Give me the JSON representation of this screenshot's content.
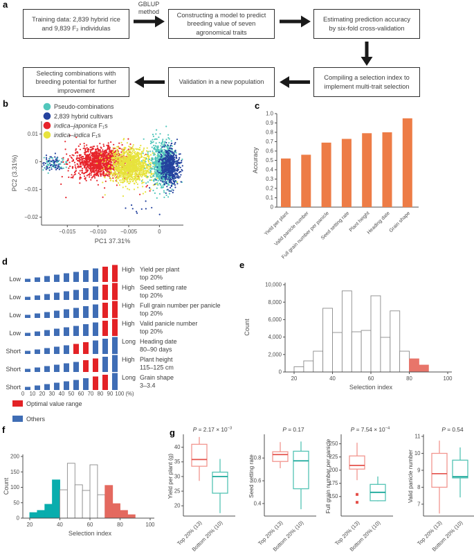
{
  "panel_labels": {
    "a": "a",
    "b": "b",
    "c": "c",
    "d": "d",
    "e": "e",
    "f": "f",
    "g": "g"
  },
  "flowchart": {
    "arrow_label": [
      "GBLUP",
      "method"
    ],
    "boxes": [
      "Training data: 2,839 hybrid rice and 9,839 F₂ individulas",
      "Constructing a model to predict breeding value of seven agronomical traits",
      "Estimating prediction accuracy by six-fold cross-validation",
      "Compiling a selection index to implement multi-trait selection",
      "Validation in a new population",
      "Selecting combinations with breeding potential for further improvement"
    ]
  },
  "chart_data": [
    {
      "id": "b",
      "type": "scatter",
      "xlabel": "PC1 37.31%",
      "ylabel": "PC2 (3.31%)",
      "xlim": [
        -0.0192,
        0.0039
      ],
      "ylim": [
        -0.0229,
        0.0146
      ],
      "xticks": [
        {
          "v": -0.015,
          "t": "−0.015"
        },
        {
          "v": -0.01,
          "t": "−0.010"
        },
        {
          "v": -0.005,
          "t": "−0.005"
        },
        {
          "v": 0,
          "t": "0"
        }
      ],
      "yticks": [
        {
          "v": 0.01,
          "t": "0.01"
        },
        {
          "v": 0,
          "t": "0"
        },
        {
          "v": -0.01,
          "t": "−0.01"
        },
        {
          "v": -0.02,
          "t": "−0.02"
        }
      ],
      "legend": [
        {
          "italic": "",
          "text": "Pseudo-combinations",
          "color": "#52c7bc"
        },
        {
          "italic": "",
          "text": "2,839 hybrid cultivars",
          "color": "#24429e"
        },
        {
          "italic": "indica–japonica",
          "text": " F₁s",
          "color": "#e7242b"
        },
        {
          "italic": "indica–indica",
          "text": " F₁s",
          "color": "#e7e33d"
        }
      ],
      "clusters": [
        {
          "color": "#24429e",
          "cx": -0.0176,
          "cy": -0.0005,
          "sx": 0.0011,
          "sy": 0.0014,
          "n": 80
        },
        {
          "color": "#52c7bc",
          "cx": -0.017,
          "cy": -0.0008,
          "sx": 0.0012,
          "sy": 0.0013,
          "n": 45
        },
        {
          "color": "#e7242b",
          "cx": -0.0092,
          "cy": -0.0008,
          "sx": 0.0042,
          "sy": 0.0048,
          "n": 55
        },
        {
          "color": "#e7242b",
          "cx": -0.0095,
          "cy": -0.0002,
          "sx": 0.0021,
          "sy": 0.0026,
          "n": 1250
        },
        {
          "color": "#e7e33d",
          "cx": -0.0046,
          "cy": -0.003,
          "sx": 0.0028,
          "sy": 0.0048,
          "n": 45
        },
        {
          "color": "#e7e33d",
          "cx": -0.0047,
          "cy": -0.0016,
          "sx": 0.0016,
          "sy": 0.0029,
          "n": 1150
        },
        {
          "color": "#52c7bc",
          "cx": 0.0004,
          "cy": -0.0008,
          "sx": 0.001,
          "sy": 0.0046,
          "n": 650
        },
        {
          "color": "#24429e",
          "cx": 0.0017,
          "cy": -0.0019,
          "sx": 0.0008,
          "sy": 0.0032,
          "n": 560
        },
        {
          "color": "#24429e",
          "cx": -0.003,
          "cy": -0.0178,
          "sx": 0.0014,
          "sy": 0.0018,
          "n": 10
        }
      ]
    },
    {
      "id": "c",
      "type": "bar",
      "ylabel": "Accuracy",
      "categories": [
        "Yield per plant",
        "Valid panicle number",
        "Full grain number per panicle",
        "Seed setting rate",
        "Plant height",
        "Heading date",
        "Grain shape"
      ],
      "values": [
        0.52,
        0.56,
        0.69,
        0.73,
        0.79,
        0.8,
        0.95
      ],
      "ylim": [
        0,
        1.0
      ],
      "yticks": [
        {
          "v": 0,
          "t": "0"
        },
        {
          "v": 0.1,
          "t": "0.1"
        },
        {
          "v": 0.2,
          "t": "0.2"
        },
        {
          "v": 0.3,
          "t": "0.3"
        },
        {
          "v": 0.4,
          "t": "0.4"
        },
        {
          "v": 0.5,
          "t": "0.5"
        },
        {
          "v": 0.6,
          "t": "0.6"
        },
        {
          "v": 0.7,
          "t": "0.7"
        },
        {
          "v": 0.8,
          "t": "0.8"
        },
        {
          "v": 0.9,
          "t": "0.9"
        },
        {
          "v": 1.0,
          "t": "1.0"
        }
      ],
      "bar_color": "#ed7c46"
    },
    {
      "id": "d",
      "type": "decile-rows",
      "red": "#e32226",
      "blue": "#3f6db5",
      "axis_labels": [
        "0",
        "10",
        "20",
        "30",
        "40",
        "50",
        "60",
        "70",
        "80",
        "90",
        "100 (%)"
      ],
      "legend": [
        {
          "color": "#e32226",
          "text": "Optimal value range"
        },
        {
          "color": "#3f6db5",
          "text": "Others"
        }
      ],
      "rows": [
        {
          "left": "Low",
          "right_qualifier": "High",
          "trait": "Yield per plant",
          "range": "top 20%",
          "red_bins": [
            8,
            9
          ]
        },
        {
          "left": "Low",
          "right_qualifier": "High",
          "trait": "Seed setting rate",
          "range": "top 20%",
          "red_bins": [
            8,
            9
          ]
        },
        {
          "left": "Low",
          "right_qualifier": "High",
          "trait": "Full grain number per panicle",
          "range": "top 20%",
          "red_bins": [
            8,
            9
          ]
        },
        {
          "left": "Low",
          "right_qualifier": "High",
          "trait": "Valid panicle number",
          "range": "top 20%",
          "red_bins": [
            8,
            9
          ]
        },
        {
          "left": "Short",
          "right_qualifier": "Long",
          "trait": "Heading date",
          "range": "80–90 days",
          "red_bins": [
            5,
            6
          ]
        },
        {
          "left": "Short",
          "right_qualifier": "High",
          "trait": "Plant height",
          "range": "115–125 cm",
          "red_bins": [
            6,
            7
          ]
        },
        {
          "left": "Short",
          "right_qualifier": "Long",
          "trait": "Grain shape",
          "range": "3–3.4",
          "red_bins": [
            7,
            8
          ]
        }
      ]
    },
    {
      "id": "e",
      "type": "bar",
      "subtype": "histogram",
      "xlabel": "Selection index",
      "ylabel": "Count",
      "bin_start": 20,
      "bin_width": 5,
      "counts": [
        600,
        1270,
        2380,
        7300,
        4520,
        9290,
        4600,
        4760,
        8730,
        3970,
        7000,
        2380,
        1510,
        790
      ],
      "colors": [
        "#ffffff",
        "#ffffff",
        "#ffffff",
        "#ffffff",
        "#ffffff",
        "#ffffff",
        "#ffffff",
        "#ffffff",
        "#ffffff",
        "#ffffff",
        "#ffffff",
        "#ffffff",
        "#e8756a",
        "#e8756a"
      ],
      "yticks": [
        {
          "v": 0,
          "t": "0"
        },
        {
          "v": 2000,
          "t": "2,000"
        },
        {
          "v": 4000,
          "t": "4,000"
        },
        {
          "v": 6000,
          "t": "6,000"
        },
        {
          "v": 8000,
          "t": "8,000"
        },
        {
          "v": 10000,
          "t": "10,000"
        }
      ],
      "xticks": [
        20,
        40,
        60,
        80,
        100
      ]
    },
    {
      "id": "f",
      "type": "bar",
      "subtype": "histogram",
      "xlabel": "Selection index",
      "ylabel": "Count",
      "bin_start": 20,
      "bin_width": 5,
      "counts": [
        18,
        25,
        45,
        124,
        92,
        178,
        108,
        90,
        173,
        76,
        106,
        47,
        25,
        11
      ],
      "colors": [
        "#09adad",
        "#09adad",
        "#09adad",
        "#09adad",
        "#ffffff",
        "#ffffff",
        "#ffffff",
        "#ffffff",
        "#ffffff",
        "#ffffff",
        "#e4695f",
        "#e4695f",
        "#e4695f",
        "#e4695f"
      ],
      "yticks": [
        {
          "v": 0,
          "t": "0"
        },
        {
          "v": 50,
          "t": "50"
        },
        {
          "v": 100,
          "t": "100"
        },
        {
          "v": 150,
          "t": "150"
        },
        {
          "v": 200,
          "t": "200"
        }
      ],
      "xticks": [
        20,
        40,
        60,
        80,
        100
      ]
    },
    {
      "id": "g",
      "type": "boxplot-group",
      "categories": [
        "Top 20% (13)",
        "Bottom 20% (10)"
      ],
      "colors": {
        "top": "#f2958e",
        "top_median": "#e4504a",
        "bottom": "#53c3b4",
        "bottom_median": "#0aa293"
      },
      "plots": [
        {
          "ylabel": "Yield per plant (g)",
          "p_italic": "P",
          "p_rest": " = 2.17 × 10",
          "p_exp": "−3",
          "ylim": [
            16.5,
            43.7
          ],
          "yticks": [
            {
              "v": 20,
              "t": "20"
            },
            {
              "v": 25,
              "t": "25"
            },
            {
              "v": 30,
              "t": "30"
            },
            {
              "v": 35,
              "t": "35"
            },
            {
              "v": 40,
              "t": "40"
            }
          ],
          "boxes": [
            {
              "low": 28.5,
              "q1": 33.5,
              "med": 35.8,
              "q3": 41.0,
              "high": 43.5,
              "outliers": []
            },
            {
              "low": 17.5,
              "q1": 24.3,
              "med": 30.0,
              "q3": 31.5,
              "high": 36.0,
              "outliers": []
            }
          ]
        },
        {
          "ylabel": "Seed setting rate",
          "p_italic": "P",
          "p_rest": " = 0.17",
          "p_exp": "",
          "ylim": [
            0.29,
            0.99
          ],
          "yticks": [
            {
              "v": 0.4,
              "t": "0.4"
            },
            {
              "v": 0.6,
              "t": "0.6"
            },
            {
              "v": 0.8,
              "t": "0.8"
            }
          ],
          "boxes": [
            {
              "low": 0.71,
              "q1": 0.77,
              "med": 0.83,
              "q3": 0.855,
              "high": 0.94,
              "outliers": []
            },
            {
              "low": 0.35,
              "q1": 0.53,
              "med": 0.775,
              "q3": 0.86,
              "high": 0.945,
              "outliers": []
            }
          ]
        },
        {
          "ylabel": "Full grain number per panicle",
          "p_italic": "P",
          "p_rest": " = 7.54 × 10",
          "p_exp": "−4",
          "ylim": [
            113,
            264
          ],
          "yticks": [
            {
              "v": 150,
              "t": "150"
            },
            {
              "v": 175,
              "t": "175"
            },
            {
              "v": 200,
              "t": "200"
            },
            {
              "v": 225,
              "t": "225"
            },
            {
              "v": 250,
              "t": "250"
            }
          ],
          "boxes": [
            {
              "low": 181,
              "q1": 202,
              "med": 209,
              "q3": 227,
              "high": 252,
              "outliers": [
                154,
                139
              ]
            },
            {
              "low": 141,
              "q1": 142,
              "med": 158,
              "q3": 173,
              "high": 188,
              "outliers": []
            }
          ]
        },
        {
          "ylabel": "Valid panicle number",
          "p_italic": "P",
          "p_rest": " = 0.54",
          "p_exp": "",
          "ylim": [
            6.3,
            11.0
          ],
          "yticks": [
            {
              "v": 7,
              "t": "7"
            },
            {
              "v": 8,
              "t": "8"
            },
            {
              "v": 9,
              "t": "9"
            },
            {
              "v": 10,
              "t": "10"
            },
            {
              "v": 11,
              "t": "11"
            }
          ],
          "boxes": [
            {
              "low": 6.45,
              "q1": 8.0,
              "med": 8.8,
              "q3": 10.0,
              "high": 10.75,
              "outliers": []
            },
            {
              "low": 7.4,
              "q1": 8.55,
              "med": 8.62,
              "q3": 9.6,
              "high": 10.35,
              "outliers": []
            }
          ]
        }
      ]
    }
  ]
}
